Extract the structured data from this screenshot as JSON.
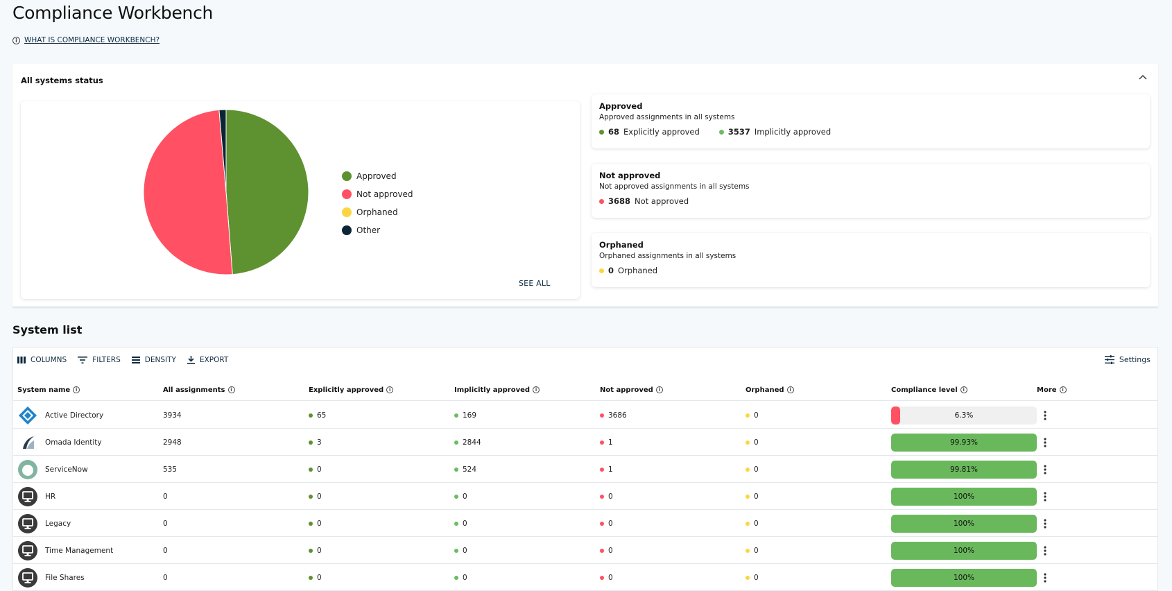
{
  "page": {
    "title": "Compliance Workbench",
    "help_link": "WHAT IS COMPLIANCE WORKBENCH?"
  },
  "status_panel": {
    "title": "All systems status",
    "see_all": "SEE ALL",
    "legend": [
      {
        "label": "Approved",
        "color": "#5e9130"
      },
      {
        "label": "Not approved",
        "color": "#ff5163"
      },
      {
        "label": "Orphaned",
        "color": "#fbd641"
      },
      {
        "label": "Other",
        "color": "#0c2535"
      }
    ],
    "cards": {
      "approved": {
        "title": "Approved",
        "subtitle": "Approved assignments in all systems",
        "explicit_value": "68",
        "explicit_label": "Explicitly approved",
        "implicit_value": "3537",
        "implicit_label": "Implicitly approved"
      },
      "not_approved": {
        "title": "Not approved",
        "subtitle": "Not approved assignments in all systems",
        "value": "3688",
        "label": "Not approved"
      },
      "orphaned": {
        "title": "Orphaned",
        "subtitle": "Orphaned assignments in all systems",
        "value": "0",
        "label": "Orphaned"
      }
    }
  },
  "chart_data": {
    "type": "pie",
    "labels": [
      "Approved",
      "Not approved",
      "Orphaned",
      "Other"
    ],
    "values": [
      3605,
      3688,
      0,
      100
    ],
    "colors": [
      "#5e9130",
      "#ff5163",
      "#fbd641",
      "#0c2535"
    ],
    "legend": "right"
  },
  "system_list": {
    "title": "System list",
    "toolbar": {
      "columns": "COLUMNS",
      "filters": "FILTERS",
      "density": "DENSITY",
      "export": "EXPORT",
      "settings": "Settings"
    },
    "columns": [
      "System name",
      "All assignments",
      "Explicitly approved",
      "Implicitly approved",
      "Not approved",
      "Orphaned",
      "Compliance level",
      "More"
    ],
    "colors": {
      "explicit": "#5e9130",
      "implicit": "#6cbc63",
      "not_approved": "#ff5163",
      "orphaned": "#fbd641",
      "bar_good": "#6ab85c",
      "bar_bad": "#ff5163"
    },
    "rows": [
      {
        "name": "Active Directory",
        "icon": "active-directory-icon",
        "all": "3934",
        "explicit": "65",
        "implicit": "169",
        "not_approved": "3686",
        "orphaned": "0",
        "compliance": "6.3%",
        "level": 0.063
      },
      {
        "name": "Omada Identity",
        "icon": "omada-identity-icon",
        "all": "2948",
        "explicit": "3",
        "implicit": "2844",
        "not_approved": "1",
        "orphaned": "0",
        "compliance": "99.93%",
        "level": 0.9993
      },
      {
        "name": "ServiceNow",
        "icon": "servicenow-icon",
        "all": "535",
        "explicit": "0",
        "implicit": "524",
        "not_approved": "1",
        "orphaned": "0",
        "compliance": "99.81%",
        "level": 0.9981
      },
      {
        "name": "HR",
        "icon": "monitor-icon",
        "all": "0",
        "explicit": "0",
        "implicit": "0",
        "not_approved": "0",
        "orphaned": "0",
        "compliance": "100%",
        "level": 1
      },
      {
        "name": "Legacy",
        "icon": "monitor-icon",
        "all": "0",
        "explicit": "0",
        "implicit": "0",
        "not_approved": "0",
        "orphaned": "0",
        "compliance": "100%",
        "level": 1
      },
      {
        "name": "Time Management",
        "icon": "monitor-icon",
        "all": "0",
        "explicit": "0",
        "implicit": "0",
        "not_approved": "0",
        "orphaned": "0",
        "compliance": "100%",
        "level": 1
      },
      {
        "name": "File Shares",
        "icon": "monitor-icon",
        "all": "0",
        "explicit": "0",
        "implicit": "0",
        "not_approved": "0",
        "orphaned": "0",
        "compliance": "100%",
        "level": 1
      }
    ]
  }
}
